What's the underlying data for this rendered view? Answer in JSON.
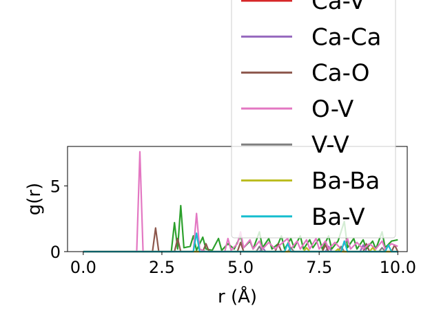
{
  "chart_data": {
    "type": "line",
    "xlabel": "r (Å)",
    "ylabel": "g(r)",
    "xlim": [
      -0.5,
      10.3
    ],
    "ylim": [
      0,
      8
    ],
    "xticks": [
      0.0,
      2.5,
      5.0,
      7.5,
      10.0
    ],
    "xtick_labels": [
      "0.0",
      "2.5",
      "5.0",
      "7.5",
      "10.0"
    ],
    "yticks": [
      0,
      5
    ],
    "ytick_labels": [
      "0",
      "5"
    ],
    "grid": false,
    "legend_position": "upper-right (extends above axes)",
    "legend_entries": [
      {
        "name": "Ca-V",
        "color": "#d62728"
      },
      {
        "name": "Ca-Ca",
        "color": "#9467bd"
      },
      {
        "name": "Ca-O",
        "color": "#8c564b"
      },
      {
        "name": "O-V",
        "color": "#e377c2"
      },
      {
        "name": "V-V",
        "color": "#7f7f7f"
      },
      {
        "name": "Ba-Ba",
        "color": "#bcbd22"
      },
      {
        "name": "Ba-V",
        "color": "#17becf"
      }
    ],
    "series": [
      {
        "color": "#2ca02c",
        "points": [
          [
            0.0,
            0
          ],
          [
            2.8,
            0
          ],
          [
            2.9,
            2.2
          ],
          [
            3.0,
            0.2
          ],
          [
            3.1,
            3.5
          ],
          [
            3.2,
            0.3
          ],
          [
            3.4,
            0.4
          ],
          [
            3.5,
            1.2
          ],
          [
            3.6,
            0.1
          ],
          [
            3.8,
            1.1
          ],
          [
            3.9,
            0.2
          ],
          [
            4.1,
            0.1
          ],
          [
            4.3,
            1.0
          ],
          [
            4.4,
            0.1
          ],
          [
            4.6,
            0.6
          ],
          [
            4.8,
            0.2
          ],
          [
            5.0,
            1.2
          ],
          [
            5.1,
            0.3
          ],
          [
            5.3,
            0.8
          ],
          [
            5.4,
            0.2
          ],
          [
            5.6,
            1.5
          ],
          [
            5.7,
            0.3
          ],
          [
            5.9,
            1.0
          ],
          [
            6.0,
            0.2
          ],
          [
            6.2,
            0.6
          ],
          [
            6.3,
            1.2
          ],
          [
            6.4,
            0.2
          ],
          [
            6.6,
            1.0
          ],
          [
            6.7,
            0.3
          ],
          [
            6.9,
            1.2
          ],
          [
            7.0,
            0.2
          ],
          [
            7.2,
            0.9
          ],
          [
            7.3,
            0.3
          ],
          [
            7.5,
            1.0
          ],
          [
            7.6,
            0.2
          ],
          [
            7.8,
            1.2
          ],
          [
            7.9,
            0.2
          ],
          [
            8.1,
            0.8
          ],
          [
            8.3,
            2.3
          ],
          [
            8.4,
            0.3
          ],
          [
            8.6,
            1.0
          ],
          [
            8.7,
            0.2
          ],
          [
            8.9,
            0.9
          ],
          [
            9.0,
            0.2
          ],
          [
            9.2,
            0.8
          ],
          [
            9.3,
            0.2
          ],
          [
            9.5,
            1.5
          ],
          [
            9.6,
            0.3
          ],
          [
            9.8,
            0.8
          ],
          [
            10.0,
            0.9
          ]
        ]
      },
      {
        "name": "Ca-Ca",
        "color": "#9467bd",
        "points": [
          [
            0.0,
            0
          ],
          [
            5.6,
            0
          ],
          [
            5.7,
            0.3
          ],
          [
            5.8,
            0
          ],
          [
            7.7,
            0
          ],
          [
            7.8,
            0.4
          ],
          [
            7.9,
            0
          ],
          [
            8.8,
            0
          ],
          [
            8.9,
            0.5
          ],
          [
            9.0,
            0
          ],
          [
            10.0,
            0
          ]
        ]
      },
      {
        "name": "Ca-O",
        "color": "#8c564b",
        "points": [
          [
            0.0,
            0
          ],
          [
            2.2,
            0
          ],
          [
            2.3,
            1.8
          ],
          [
            2.4,
            0
          ],
          [
            2.9,
            0
          ],
          [
            3.0,
            1.0
          ],
          [
            3.1,
            0
          ],
          [
            3.8,
            0
          ],
          [
            3.9,
            0.6
          ],
          [
            4.0,
            0
          ],
          [
            4.9,
            0
          ],
          [
            5.0,
            0.7
          ],
          [
            5.1,
            0
          ],
          [
            6.1,
            0
          ],
          [
            6.2,
            0.6
          ],
          [
            6.3,
            0
          ],
          [
            7.6,
            0
          ],
          [
            7.7,
            0.5
          ],
          [
            7.8,
            0
          ],
          [
            8.9,
            0
          ],
          [
            9.0,
            0.6
          ],
          [
            9.1,
            0
          ],
          [
            9.8,
            0
          ],
          [
            9.9,
            0.5
          ],
          [
            10.0,
            0
          ]
        ]
      },
      {
        "name": "O-V",
        "color": "#e377c2",
        "points": [
          [
            0.0,
            0
          ],
          [
            1.7,
            0
          ],
          [
            1.8,
            7.6
          ],
          [
            1.9,
            0
          ],
          [
            3.5,
            0
          ],
          [
            3.6,
            2.9
          ],
          [
            3.7,
            0.2
          ],
          [
            3.9,
            0
          ],
          [
            4.5,
            0
          ],
          [
            4.6,
            1.0
          ],
          [
            4.7,
            0.1
          ],
          [
            4.9,
            0.6
          ],
          [
            5.0,
            1.5
          ],
          [
            5.1,
            0.3
          ],
          [
            5.3,
            0.9
          ],
          [
            5.4,
            0.2
          ],
          [
            5.6,
            0.8
          ],
          [
            5.7,
            0.2
          ],
          [
            5.9,
            0.7
          ],
          [
            6.1,
            0.2
          ],
          [
            6.3,
            0.6
          ],
          [
            6.5,
            1.0
          ],
          [
            6.6,
            0.2
          ],
          [
            6.8,
            0.8
          ],
          [
            6.9,
            0.2
          ],
          [
            7.1,
            0.9
          ],
          [
            7.2,
            0.2
          ],
          [
            7.4,
            1.0
          ],
          [
            7.5,
            0.2
          ],
          [
            7.7,
            0.8
          ],
          [
            7.8,
            0.2
          ],
          [
            8.0,
            0.7
          ],
          [
            8.2,
            0.2
          ],
          [
            8.4,
            1.0
          ],
          [
            8.5,
            0.2
          ],
          [
            8.7,
            0.7
          ],
          [
            8.9,
            0.2
          ],
          [
            9.1,
            0.6
          ],
          [
            9.3,
            0.2
          ],
          [
            9.5,
            0.8
          ],
          [
            9.6,
            0.2
          ],
          [
            9.8,
            0.6
          ],
          [
            10.0,
            0.4
          ]
        ]
      },
      {
        "name": "V-V",
        "color": "#7f7f7f",
        "points": [
          [
            0.0,
            0
          ],
          [
            5.5,
            0
          ],
          [
            5.6,
            0.4
          ],
          [
            5.7,
            0
          ],
          [
            6.5,
            0
          ],
          [
            6.6,
            0.3
          ],
          [
            6.7,
            0
          ],
          [
            8.1,
            0
          ],
          [
            8.2,
            0.4
          ],
          [
            8.3,
            0
          ],
          [
            9.4,
            0
          ],
          [
            9.5,
            0.3
          ],
          [
            9.6,
            0
          ],
          [
            10.0,
            0
          ]
        ]
      },
      {
        "name": "Ba-Ba",
        "color": "#bcbd22",
        "points": [
          [
            0.0,
            0
          ],
          [
            7.0,
            0
          ],
          [
            7.1,
            0.3
          ],
          [
            7.2,
            0
          ],
          [
            8.0,
            0
          ],
          [
            8.1,
            0.2
          ],
          [
            8.2,
            0
          ],
          [
            9.1,
            0
          ],
          [
            9.2,
            0.3
          ],
          [
            9.3,
            0
          ],
          [
            10.0,
            0
          ]
        ]
      },
      {
        "name": "Ba-V",
        "color": "#17becf",
        "points": [
          [
            0.0,
            0
          ],
          [
            3.5,
            0
          ],
          [
            3.6,
            1.4
          ],
          [
            3.7,
            0
          ],
          [
            6.4,
            0
          ],
          [
            6.5,
            0.6
          ],
          [
            6.6,
            0
          ],
          [
            8.2,
            0
          ],
          [
            8.3,
            0.8
          ],
          [
            8.4,
            0
          ],
          [
            9.6,
            0
          ],
          [
            9.7,
            0.5
          ],
          [
            9.8,
            0
          ],
          [
            10.0,
            0
          ]
        ]
      }
    ]
  }
}
